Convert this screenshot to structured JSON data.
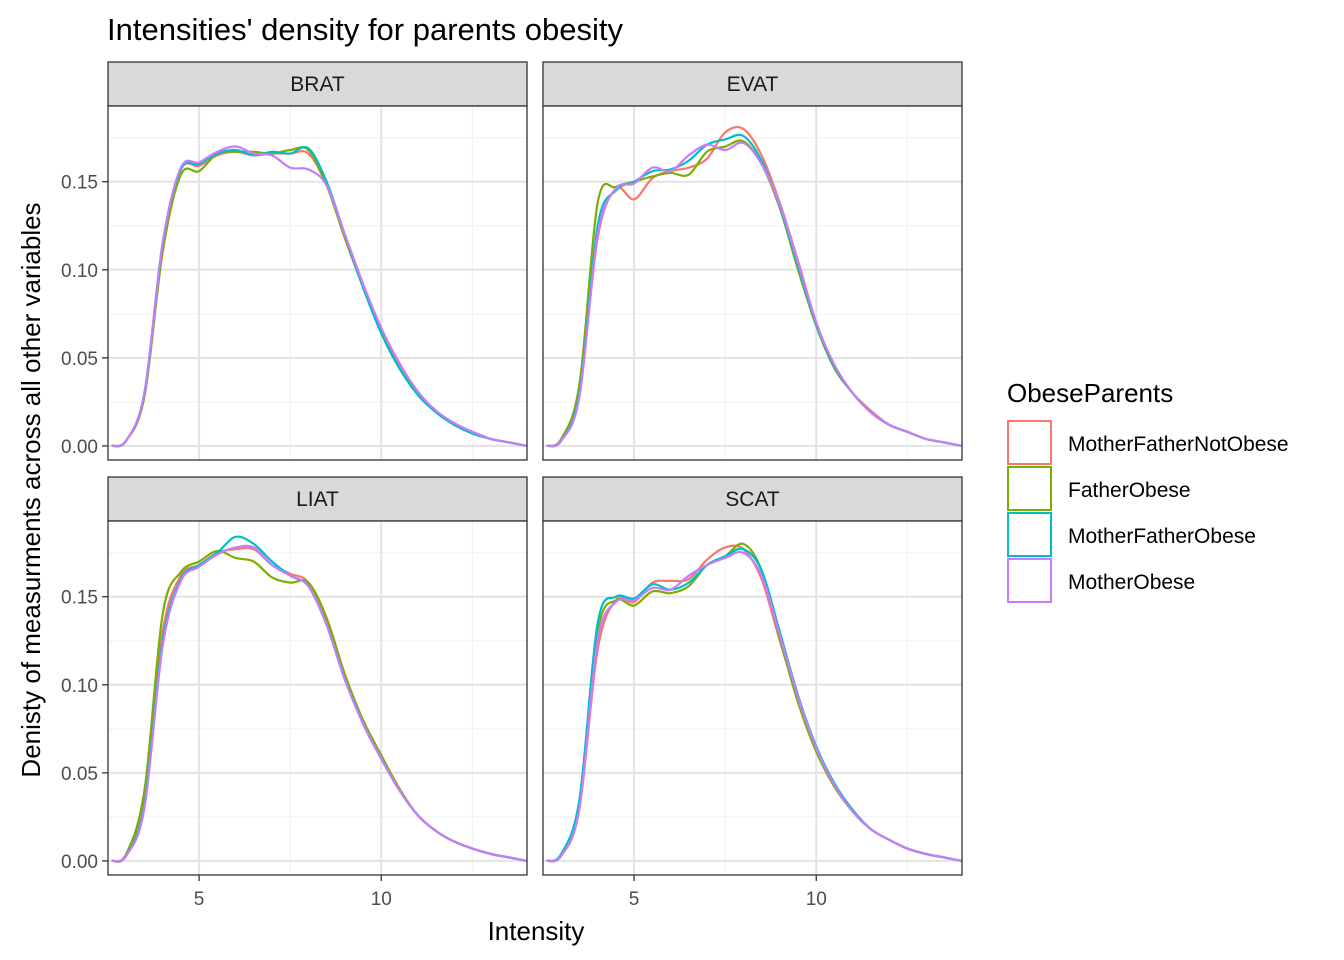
{
  "chart_data": {
    "type": "line",
    "title": "Intensities' density for parents obesity",
    "xlabel": "Intensity",
    "ylabel": "Denisty of measurments across all other variables",
    "xlim": [
      2.5,
      14.0
    ],
    "ylim": [
      -0.008,
      0.193
    ],
    "x_ticks": [
      5,
      10
    ],
    "x_tick_labels": [
      "5",
      "10"
    ],
    "y_ticks": [
      0.0,
      0.05,
      0.1,
      0.15
    ],
    "y_tick_labels": [
      "0.00",
      "0.05",
      "0.10",
      "0.15"
    ],
    "grid": true,
    "legend": {
      "title": "ObeseParents",
      "position": "right",
      "entries": [
        "MotherFatherNotObese",
        "FatherObese",
        "MotherFatherObese",
        "MotherObese"
      ]
    },
    "colors": {
      "MotherFatherNotObese": "#F8766D",
      "FatherObese": "#7CAE00",
      "MotherFatherObese": "#00BFC4",
      "MotherObese": "#C77CFF"
    },
    "x": [
      2.6,
      3.0,
      3.5,
      4.0,
      4.5,
      5.0,
      5.5,
      6.0,
      6.5,
      7.0,
      7.5,
      8.0,
      8.5,
      9.0,
      9.5,
      10.0,
      10.5,
      11.0,
      11.5,
      12.0,
      12.5,
      13.0,
      13.5,
      14.0
    ],
    "facets": [
      {
        "label": "BRAT",
        "series": [
          {
            "name": "MotherFatherNotObese",
            "values": [
              0.0,
              0.003,
              0.03,
              0.115,
              0.157,
              0.159,
              0.165,
              0.167,
              0.165,
              0.166,
              0.166,
              0.166,
              0.148,
              0.12,
              0.092,
              0.065,
              0.045,
              0.03,
              0.02,
              0.012,
              0.008,
              0.004,
              0.002,
              0.0
            ]
          },
          {
            "name": "FatherObese",
            "values": [
              0.0,
              0.003,
              0.028,
              0.11,
              0.154,
              0.156,
              0.166,
              0.167,
              0.167,
              0.166,
              0.168,
              0.168,
              0.148,
              0.118,
              0.09,
              0.064,
              0.044,
              0.03,
              0.02,
              0.012,
              0.008,
              0.004,
              0.002,
              0.0
            ]
          },
          {
            "name": "MotherFatherObese",
            "values": [
              0.0,
              0.003,
              0.03,
              0.115,
              0.157,
              0.16,
              0.166,
              0.168,
              0.165,
              0.167,
              0.166,
              0.169,
              0.15,
              0.12,
              0.09,
              0.064,
              0.044,
              0.029,
              0.019,
              0.012,
              0.007,
              0.004,
              0.002,
              0.0
            ]
          },
          {
            "name": "MotherObese",
            "values": [
              0.0,
              0.003,
              0.03,
              0.115,
              0.158,
              0.161,
              0.167,
              0.17,
              0.166,
              0.165,
              0.158,
              0.157,
              0.148,
              0.12,
              0.092,
              0.067,
              0.047,
              0.031,
              0.02,
              0.013,
              0.008,
              0.004,
              0.002,
              0.0
            ]
          }
        ]
      },
      {
        "label": "EVAT",
        "series": [
          {
            "name": "MotherFatherNotObese",
            "values": [
              0.0,
              0.003,
              0.03,
              0.118,
              0.146,
              0.14,
              0.152,
              0.156,
              0.158,
              0.163,
              0.178,
              0.18,
              0.165,
              0.138,
              0.105,
              0.07,
              0.045,
              0.03,
              0.02,
              0.012,
              0.008,
              0.004,
              0.002,
              0.0
            ]
          },
          {
            "name": "FatherObese",
            "values": [
              0.0,
              0.004,
              0.035,
              0.138,
              0.147,
              0.15,
              0.153,
              0.155,
              0.154,
              0.167,
              0.17,
              0.173,
              0.16,
              0.135,
              0.1,
              0.068,
              0.044,
              0.03,
              0.019,
              0.012,
              0.008,
              0.004,
              0.002,
              0.0
            ]
          },
          {
            "name": "MotherFatherObese",
            "values": [
              0.0,
              0.003,
              0.03,
              0.125,
              0.145,
              0.15,
              0.156,
              0.157,
              0.162,
              0.171,
              0.174,
              0.176,
              0.162,
              0.136,
              0.102,
              0.069,
              0.045,
              0.03,
              0.019,
              0.012,
              0.008,
              0.004,
              0.002,
              0.0
            ]
          },
          {
            "name": "MotherObese",
            "values": [
              0.0,
              0.003,
              0.028,
              0.12,
              0.146,
              0.149,
              0.158,
              0.156,
              0.165,
              0.171,
              0.168,
              0.172,
              0.16,
              0.137,
              0.104,
              0.07,
              0.046,
              0.03,
              0.019,
              0.012,
              0.008,
              0.004,
              0.002,
              0.0
            ]
          }
        ]
      },
      {
        "label": "LIAT",
        "series": [
          {
            "name": "MotherFatherNotObese",
            "values": [
              0.0,
              0.003,
              0.035,
              0.13,
              0.162,
              0.168,
              0.175,
              0.177,
              0.177,
              0.168,
              0.163,
              0.158,
              0.135,
              0.105,
              0.078,
              0.058,
              0.04,
              0.026,
              0.017,
              0.011,
              0.007,
              0.004,
              0.002,
              0.0
            ]
          },
          {
            "name": "FatherObese",
            "values": [
              0.0,
              0.004,
              0.04,
              0.14,
              0.164,
              0.17,
              0.176,
              0.172,
              0.17,
              0.161,
              0.158,
              0.158,
              0.138,
              0.106,
              0.08,
              0.06,
              0.041,
              0.026,
              0.017,
              0.011,
              0.007,
              0.004,
              0.002,
              0.0
            ]
          },
          {
            "name": "MotherFatherObese",
            "values": [
              0.0,
              0.003,
              0.032,
              0.125,
              0.16,
              0.168,
              0.175,
              0.184,
              0.18,
              0.17,
              0.162,
              0.156,
              0.134,
              0.103,
              0.078,
              0.058,
              0.04,
              0.026,
              0.017,
              0.011,
              0.007,
              0.004,
              0.002,
              0.0
            ]
          },
          {
            "name": "MotherObese",
            "values": [
              0.0,
              0.003,
              0.03,
              0.122,
              0.159,
              0.167,
              0.174,
              0.178,
              0.178,
              0.168,
              0.162,
              0.156,
              0.134,
              0.103,
              0.078,
              0.058,
              0.04,
              0.026,
              0.017,
              0.011,
              0.007,
              0.004,
              0.002,
              0.0
            ]
          }
        ]
      },
      {
        "label": "SCAT",
        "series": [
          {
            "name": "MotherFatherNotObese",
            "values": [
              0.0,
              0.003,
              0.03,
              0.12,
              0.148,
              0.147,
              0.158,
              0.159,
              0.16,
              0.171,
              0.178,
              0.177,
              0.16,
              0.125,
              0.092,
              0.064,
              0.043,
              0.028,
              0.018,
              0.012,
              0.007,
              0.004,
              0.002,
              0.0
            ]
          },
          {
            "name": "FatherObese",
            "values": [
              0.0,
              0.003,
              0.03,
              0.13,
              0.148,
              0.145,
              0.153,
              0.152,
              0.156,
              0.168,
              0.173,
              0.18,
              0.165,
              0.126,
              0.09,
              0.062,
              0.042,
              0.028,
              0.018,
              0.012,
              0.007,
              0.004,
              0.002,
              0.0
            ]
          },
          {
            "name": "MotherFatherObese",
            "values": [
              0.0,
              0.004,
              0.035,
              0.135,
              0.15,
              0.149,
              0.157,
              0.154,
              0.158,
              0.168,
              0.173,
              0.177,
              0.165,
              0.13,
              0.094,
              0.065,
              0.044,
              0.029,
              0.018,
              0.012,
              0.007,
              0.004,
              0.002,
              0.0
            ]
          },
          {
            "name": "MotherObese",
            "values": [
              0.0,
              0.003,
              0.03,
              0.125,
              0.147,
              0.148,
              0.155,
              0.154,
              0.162,
              0.168,
              0.172,
              0.175,
              0.162,
              0.128,
              0.093,
              0.064,
              0.043,
              0.028,
              0.018,
              0.012,
              0.007,
              0.004,
              0.002,
              0.0
            ]
          }
        ]
      }
    ]
  }
}
